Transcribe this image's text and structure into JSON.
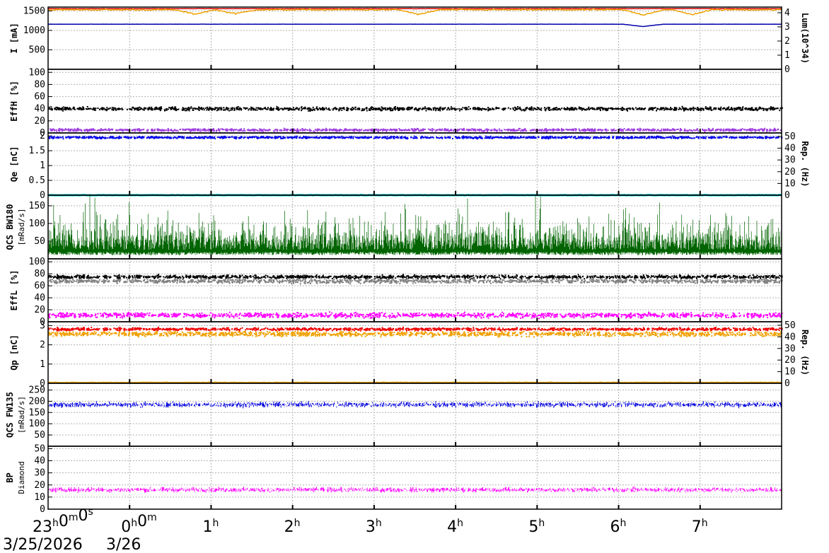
{
  "chart_data": {
    "type": "line",
    "time_axis": {
      "range": [
        "23:00",
        "08:00"
      ],
      "tick_labels": [
        {
          "main": "23",
          "h": "h",
          "m0": "0",
          "m": "m",
          "s0": "0",
          "s": "s"
        },
        {
          "main": "0",
          "h": "h",
          "m0": "0",
          "m": "m"
        },
        {
          "main": "1",
          "h": "h"
        },
        {
          "main": "2",
          "h": "h"
        },
        {
          "main": "3",
          "h": "h"
        },
        {
          "main": "4",
          "h": "h"
        },
        {
          "main": "5",
          "h": "h"
        },
        {
          "main": "6",
          "h": "h"
        },
        {
          "main": "7",
          "h": "h"
        }
      ],
      "dates": [
        "3/25/2026",
        "3/26"
      ],
      "grid": true
    },
    "panels": [
      {
        "id": "current",
        "ylabel_left": "I [mA]",
        "ylabel_right": "Lum(10^34)",
        "yticks_left": [
          "500",
          "1000",
          "1500"
        ],
        "yticks_right": [
          "0",
          "1",
          "2",
          "3",
          "4"
        ],
        "ylim_left": [
          0,
          1600
        ],
        "ylim_right": [
          0,
          4.4
        ],
        "series": [
          {
            "color": "#cc0000",
            "level": 1560,
            "noise": 6,
            "style": "line"
          },
          {
            "color": "#f0a000",
            "level": 1530,
            "noise": 25,
            "style": "line",
            "dips": [
              [
                1.8,
                110
              ],
              [
                2.3,
                100
              ],
              [
                4.55,
                120
              ],
              [
                7.3,
                130
              ],
              [
                7.9,
                120
              ]
            ]
          },
          {
            "color": "#0000aa",
            "level": 1160,
            "noise": 3,
            "style": "line",
            "dips": [
              [
                7.3,
                60
              ]
            ]
          }
        ]
      },
      {
        "id": "eff_h",
        "ylabel_left": "Eff_H [%]",
        "yticks_left": [
          "0",
          "20",
          "40",
          "60",
          "80",
          "100"
        ],
        "ylim_left": [
          0,
          105
        ],
        "series": [
          {
            "color": "#000000",
            "level": 41,
            "noise": 4,
            "style": "dots"
          },
          {
            "color": "#a040e0",
            "level": 6,
            "noise": 3,
            "style": "dots"
          }
        ]
      },
      {
        "id": "charge_e",
        "ylabel_left": "Q_e [nC]",
        "ylabel_right": "Rep. (Hz)",
        "yticks_left": [
          "0",
          "0.5",
          "1",
          "1.5",
          "2"
        ],
        "yticks_right": [
          "0",
          "10",
          "20",
          "30",
          "40",
          "50"
        ],
        "ylim_left": [
          0,
          2.1
        ],
        "ylim_right": [
          0,
          53
        ],
        "series": [
          {
            "color": "#0000ee",
            "level": 1.97,
            "noise": 0.05,
            "style": "dots"
          },
          {
            "color": "#00dddd",
            "level": 0.0,
            "noise": 0.01,
            "style": "line"
          }
        ]
      },
      {
        "id": "qcs_bw",
        "ylabel_left": "QCS BW180",
        "ylabel_left2": "[mRad/s]",
        "yticks_left": [
          "50",
          "100",
          "150"
        ],
        "ylim_left": [
          0,
          180
        ],
        "series": [
          {
            "color": "#006400",
            "level": 25,
            "noise": 120,
            "style": "spikes"
          }
        ]
      },
      {
        "id": "eff_l",
        "ylabel_left": "Eff_L [%]",
        "yticks_left": [
          "0",
          "20",
          "40",
          "60",
          "80",
          "100"
        ],
        "ylim_left": [
          0,
          105
        ],
        "series": [
          {
            "color": "#000000",
            "level": 76,
            "noise": 4,
            "style": "dots"
          },
          {
            "color": "#808080",
            "level": 69,
            "noise": 5,
            "style": "dots"
          },
          {
            "color": "#ff00ff",
            "level": 12,
            "noise": 6,
            "style": "dots"
          }
        ]
      },
      {
        "id": "charge_p",
        "ylabel_left": "Q_p [nC]",
        "ylabel_right": "Rep. (Hz)",
        "yticks_left": [
          "0",
          "1",
          "2",
          "3"
        ],
        "yticks_right": [
          "0",
          "10",
          "20",
          "30",
          "40",
          "50"
        ],
        "ylim_left": [
          0,
          3.2
        ],
        "ylim_right": [
          0,
          53
        ],
        "series": [
          {
            "color": "#f0a000",
            "level": 2.6,
            "noise": 0.18,
            "style": "dots"
          },
          {
            "color": "#ee0000",
            "level": 2.85,
            "noise": 0.1,
            "style": "dots"
          },
          {
            "color": "#f0a000",
            "level": 0.05,
            "noise": 0.02,
            "style": "line"
          }
        ]
      },
      {
        "id": "qcs_fw",
        "ylabel_left": "QCS FW135",
        "ylabel_left2": "[mRad/s]",
        "yticks_left": [
          "50",
          "100",
          "150",
          "200",
          "250"
        ],
        "ylim_left": [
          0,
          280
        ],
        "series": [
          {
            "color": "#0000dd",
            "level": 185,
            "noise": 18,
            "style": "noisy"
          }
        ]
      },
      {
        "id": "bp_diamond",
        "ylabel_left": "BP",
        "ylabel_left2": "Diamond",
        "yticks_left": [
          "0",
          "10",
          "20",
          "30",
          "40",
          "50"
        ],
        "ylim_left": [
          0,
          52
        ],
        "series": [
          {
            "color": "#ff00ff",
            "level": 16,
            "noise": 3,
            "style": "noisy"
          }
        ]
      }
    ]
  }
}
